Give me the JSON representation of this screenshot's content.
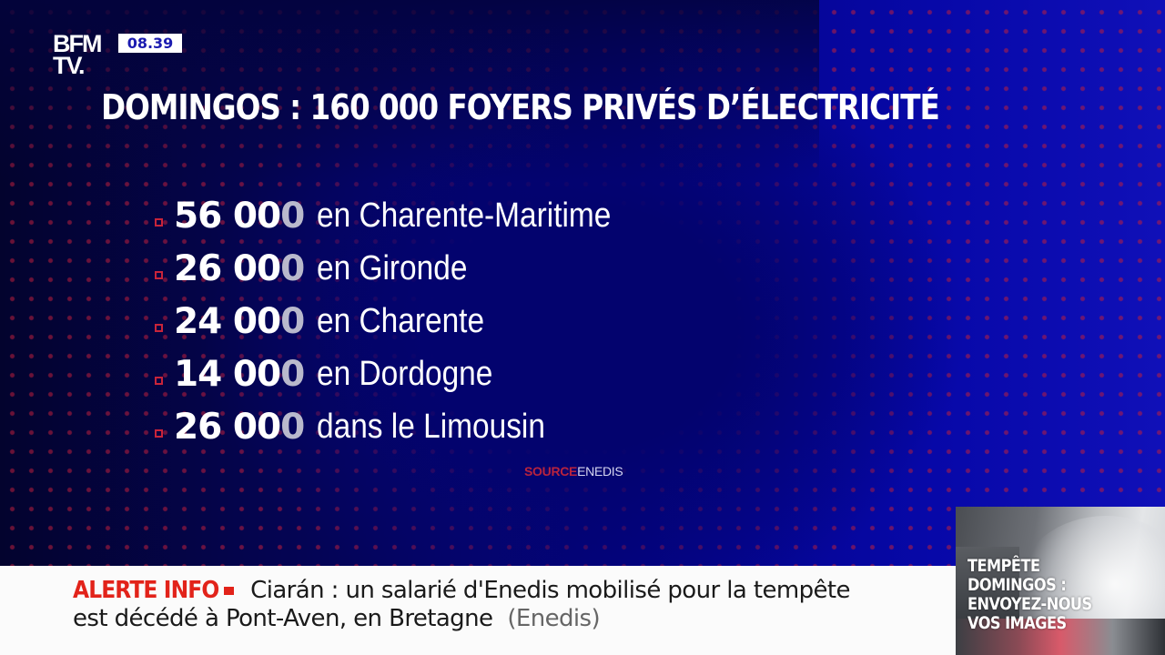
{
  "channel": {
    "logo_line1": "BFM",
    "logo_line2": "TV.",
    "clock": "08.39"
  },
  "headline": "DOMINGOS : 160 000 FOYERS PRIVÉS D’ÉLECTRICITÉ",
  "items": [
    {
      "number_main": "56 00",
      "number_last": "0",
      "label": "en Charente-Maritime"
    },
    {
      "number_main": "26 00",
      "number_last": "0",
      "label": "en Gironde"
    },
    {
      "number_main": "24 00",
      "number_last": "0",
      "label": "en Charente"
    },
    {
      "number_main": "14 00",
      "number_last": "0",
      "label": "en Dordogne"
    },
    {
      "number_main": "26 00",
      "number_last": "0",
      "label": "dans le Limousin"
    }
  ],
  "source": {
    "key": "SOURCE",
    "value": "ENEDIS"
  },
  "ticker": {
    "tag": "ALERTE INFO",
    "line1": "Ciarán : un salarié d'Enedis mobilisé pour la tempête",
    "line2": "est décédé à Pont-Aven, en Bretagne",
    "attribution": "(Enedis)"
  },
  "promo": {
    "lines": [
      "TEMPÊTE",
      "DOMINGOS :",
      "ENVOYEZ-NOUS",
      "VOS IMAGES"
    ]
  },
  "colors": {
    "background_navy": "#03032e",
    "background_blue": "#1010b8",
    "accent_red": "#e2231a",
    "bullet_red": "#c8243a",
    "clock_text": "#1b1bb0",
    "ticker_bg": "#fbfbfb"
  }
}
